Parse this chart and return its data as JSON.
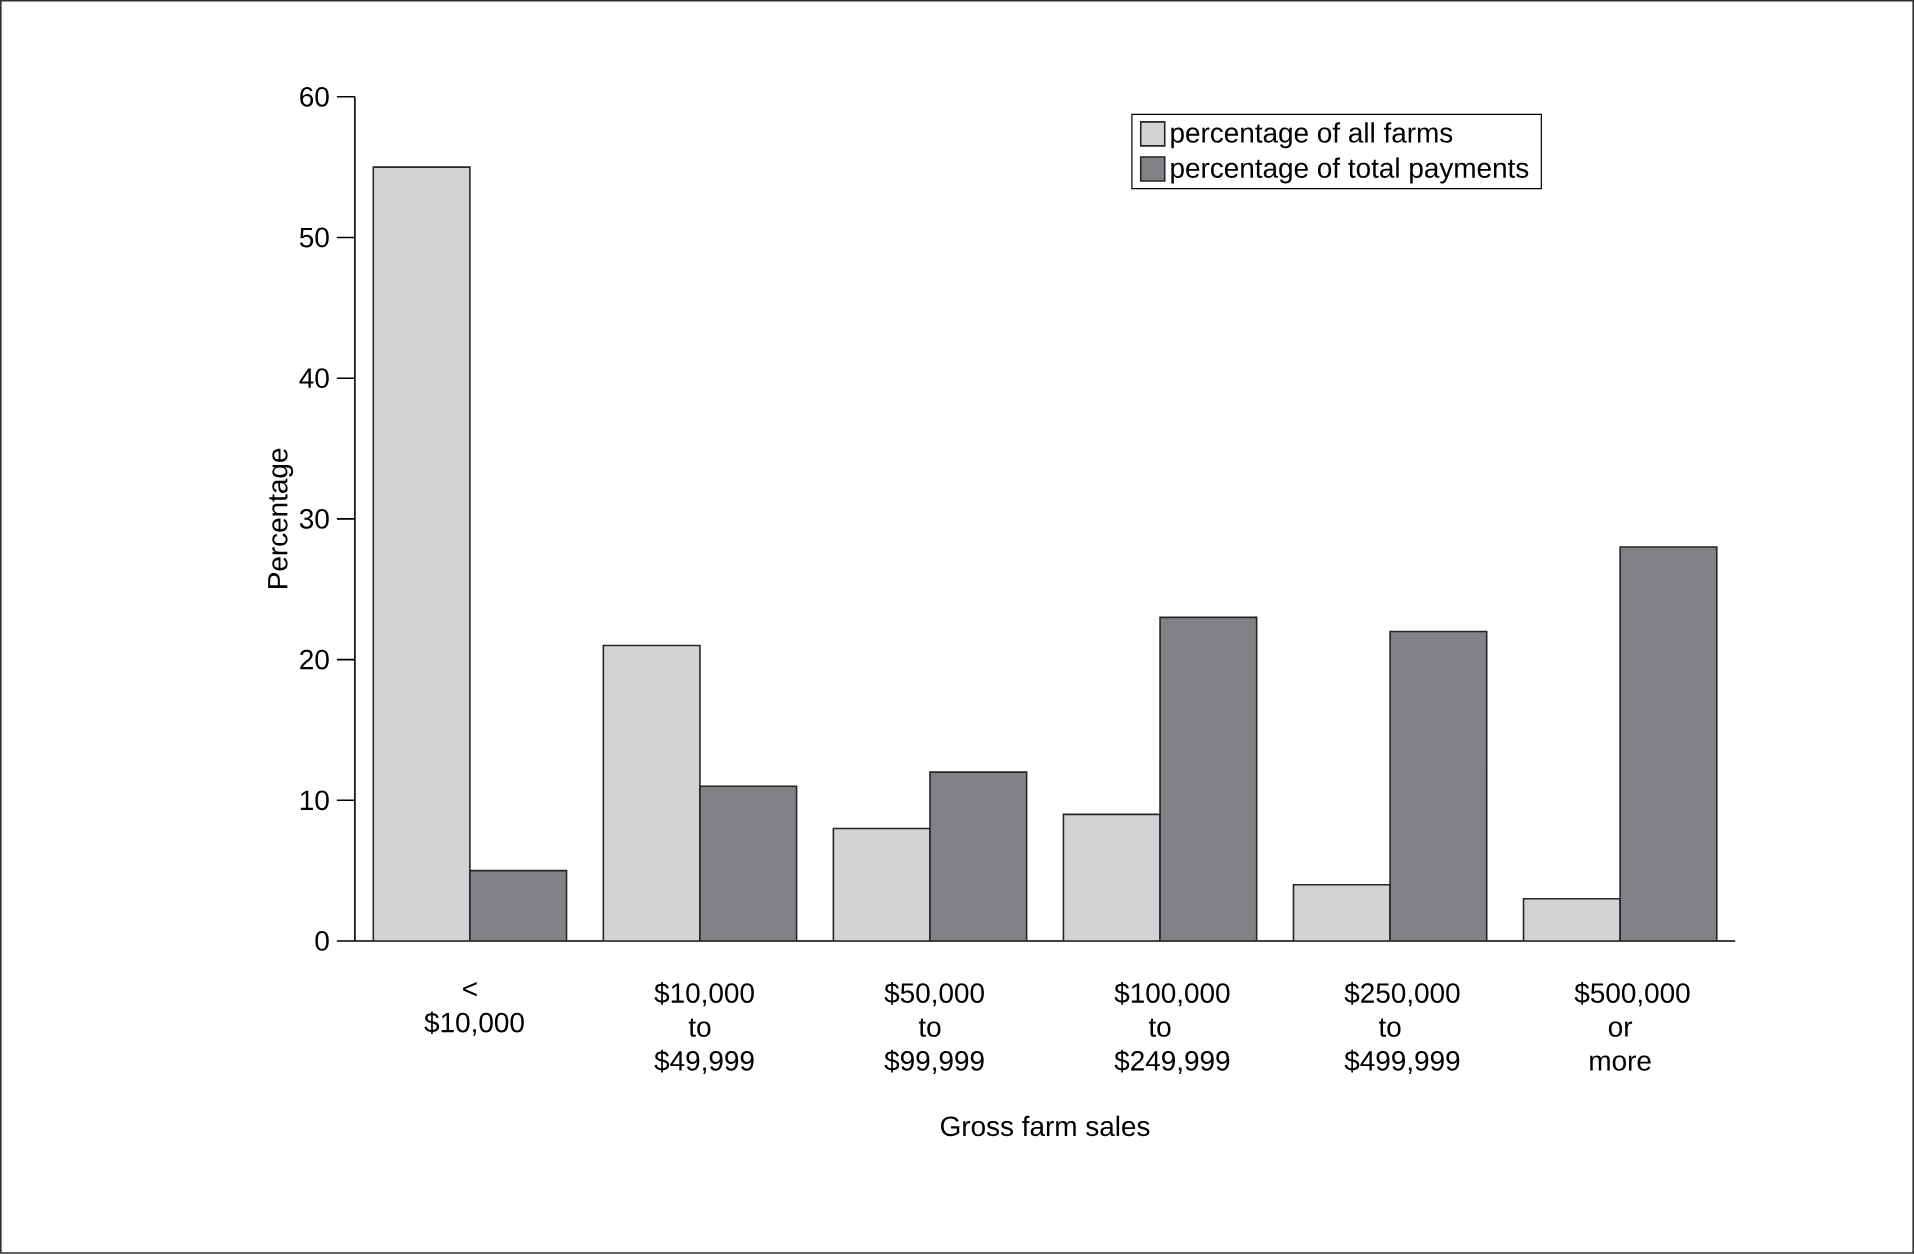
{
  "chart_data": {
    "type": "bar",
    "xlabel": "Gross farm sales",
    "ylabel": "Percentage",
    "categories": [
      "< $10,000",
      "$10,000 to $49,999",
      "$50,000 to $99,999",
      "$100,000 to $249,999",
      "$250,000 to $499,999",
      "$500,000 or more"
    ],
    "series": [
      {
        "name": "percentage of all farms",
        "color": "#d1d3d4",
        "values": [
          55,
          21,
          8,
          9,
          4,
          3
        ]
      },
      {
        "name": "percentage of total payments",
        "color": "#808285",
        "values": [
          5,
          11,
          12,
          23,
          22,
          28
        ]
      }
    ],
    "ylim": [
      0,
      60
    ],
    "yticks": [
      0,
      10,
      20,
      30,
      40,
      50,
      60
    ],
    "grid": false,
    "legend": "top right"
  }
}
